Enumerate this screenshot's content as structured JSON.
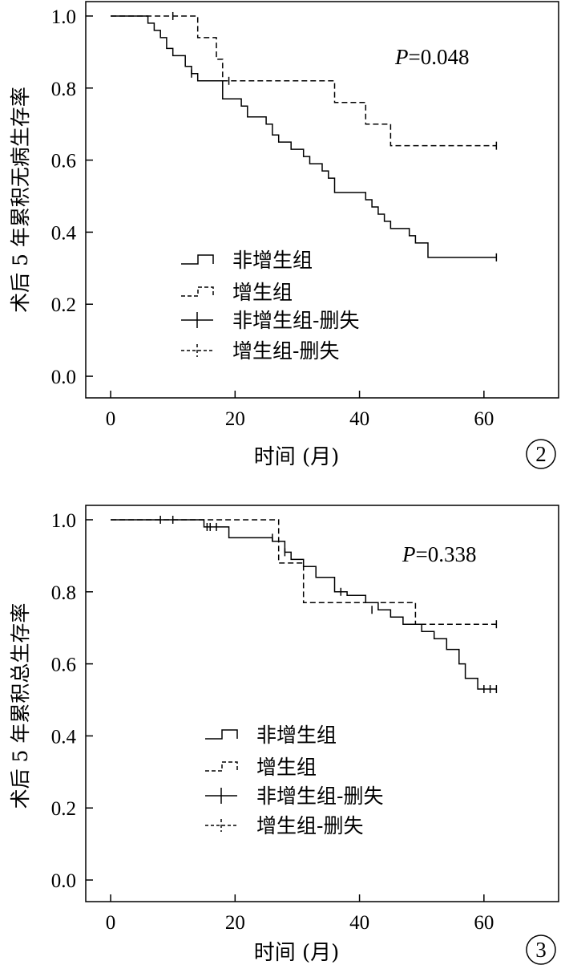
{
  "chart_data": [
    {
      "type": "line",
      "subtype": "kaplan-meier",
      "panel_number": "2",
      "xlabel": "时间 (月)",
      "ylabel": "术后 5 年累积无病生存率",
      "xlim": [
        -4,
        72
      ],
      "ylim": [
        -0.06,
        1.04
      ],
      "xticks": [
        0,
        20,
        40,
        60
      ],
      "yticks": [
        0.0,
        0.2,
        0.4,
        0.6,
        0.8,
        1.0
      ],
      "ytick_labels": [
        "0.0",
        "0.2",
        "0.4",
        "0.6",
        "0.8",
        "1.0"
      ],
      "p_label": "P",
      "p_value": "=0.048",
      "legend_position": "lower-left",
      "legend": [
        "非增生组",
        "增生组",
        "非增生组-删失",
        "增生组-删失"
      ],
      "series": [
        {
          "name": "非增生组",
          "dash": false,
          "steps": [
            [
              0,
              1.0
            ],
            [
              6,
              0.98
            ],
            [
              7,
              0.96
            ],
            [
              8,
              0.94
            ],
            [
              9,
              0.91
            ],
            [
              10,
              0.89
            ],
            [
              12,
              0.86
            ],
            [
              13,
              0.84
            ],
            [
              14,
              0.82
            ],
            [
              18,
              0.77
            ],
            [
              21,
              0.75
            ],
            [
              22,
              0.72
            ],
            [
              25,
              0.7
            ],
            [
              26,
              0.67
            ],
            [
              27,
              0.65
            ],
            [
              29,
              0.63
            ],
            [
              31,
              0.61
            ],
            [
              32,
              0.59
            ],
            [
              34,
              0.57
            ],
            [
              35,
              0.55
            ],
            [
              36,
              0.51
            ],
            [
              41,
              0.49
            ],
            [
              42,
              0.47
            ],
            [
              43,
              0.45
            ],
            [
              44,
              0.43
            ],
            [
              45,
              0.41
            ],
            [
              48,
              0.39
            ],
            [
              49,
              0.37
            ],
            [
              51,
              0.33
            ],
            [
              62,
              0.33
            ]
          ],
          "censored": [
            [
              13,
              0.84
            ],
            [
              62,
              0.33
            ]
          ]
        },
        {
          "name": "增生组",
          "dash": true,
          "steps": [
            [
              0,
              1.0
            ],
            [
              14,
              0.94
            ],
            [
              17,
              0.88
            ],
            [
              18,
              0.82
            ],
            [
              36,
              0.76
            ],
            [
              41,
              0.7
            ],
            [
              45,
              0.64
            ],
            [
              62,
              0.64
            ]
          ],
          "censored": [
            [
              10,
              1.0
            ],
            [
              19,
              0.82
            ],
            [
              62,
              0.64
            ]
          ]
        }
      ]
    },
    {
      "type": "line",
      "subtype": "kaplan-meier",
      "panel_number": "3",
      "xlabel": "时间 (月)",
      "ylabel": "术后 5 年累积总生存率",
      "xlim": [
        -4,
        72
      ],
      "ylim": [
        -0.06,
        1.04
      ],
      "xticks": [
        0,
        20,
        40,
        60
      ],
      "yticks": [
        0.0,
        0.2,
        0.4,
        0.6,
        0.8,
        1.0
      ],
      "ytick_labels": [
        "0.0",
        "0.2",
        "0.4",
        "0.6",
        "0.8",
        "1.0"
      ],
      "p_label": "P",
      "p_value": "=0.338",
      "legend_position": "lower-left",
      "legend": [
        "非增生组",
        "增生组",
        "非增生组-删失",
        "增生组-删失"
      ],
      "series": [
        {
          "name": "非增生组",
          "dash": false,
          "steps": [
            [
              0,
              1.0
            ],
            [
              15,
              0.98
            ],
            [
              19,
              0.95
            ],
            [
              26,
              0.94
            ],
            [
              28,
              0.91
            ],
            [
              29,
              0.89
            ],
            [
              31,
              0.87
            ],
            [
              33,
              0.84
            ],
            [
              36,
              0.8
            ],
            [
              38,
              0.79
            ],
            [
              41,
              0.77
            ],
            [
              43,
              0.75
            ],
            [
              45,
              0.73
            ],
            [
              47,
              0.71
            ],
            [
              50,
              0.69
            ],
            [
              52,
              0.67
            ],
            [
              54,
              0.64
            ],
            [
              56,
              0.6
            ],
            [
              57,
              0.56
            ],
            [
              59,
              0.53
            ],
            [
              62,
              0.53
            ]
          ],
          "censored": [
            [
              15.5,
              0.98
            ],
            [
              16,
              0.98
            ],
            [
              17,
              0.98
            ],
            [
              26,
              0.95
            ],
            [
              28,
              0.91
            ],
            [
              37,
              0.8
            ],
            [
              42,
              0.75
            ],
            [
              60,
              0.53
            ],
            [
              61,
              0.53
            ],
            [
              62,
              0.53
            ]
          ]
        },
        {
          "name": "增生组",
          "dash": true,
          "steps": [
            [
              0,
              1.0
            ],
            [
              27,
              0.88
            ],
            [
              31,
              0.77
            ],
            [
              49,
              0.71
            ],
            [
              62,
              0.71
            ]
          ],
          "censored": [
            [
              8,
              1.0
            ],
            [
              10,
              1.0
            ],
            [
              62,
              0.71
            ]
          ]
        }
      ]
    }
  ]
}
